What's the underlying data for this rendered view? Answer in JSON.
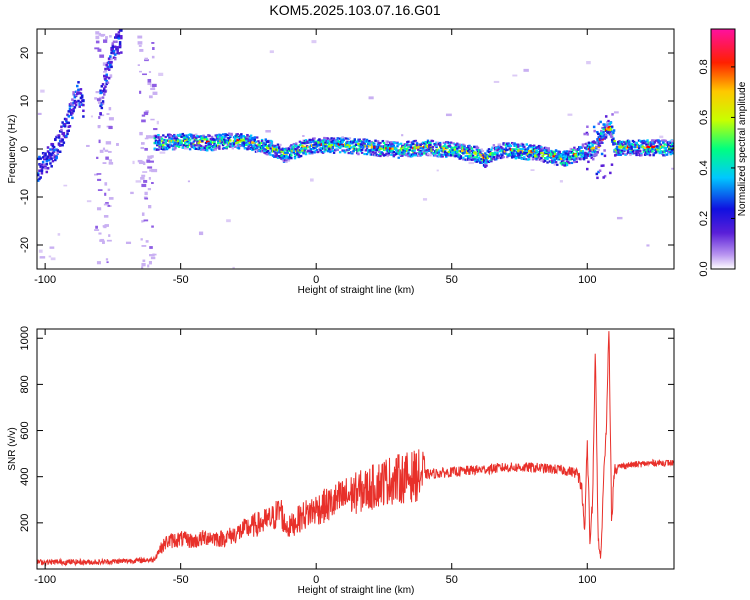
{
  "title": "KOM5.2025.103.07.16.G01",
  "chart_data": [
    {
      "type": "heatmap",
      "xlabel": "Height of straight line (km)",
      "ylabel": "Frequency (Hz)",
      "xlim": [
        -103,
        132
      ],
      "ylim": [
        -25,
        25
      ],
      "xticks": [
        -100,
        -50,
        0,
        50,
        100
      ],
      "yticks": [
        -20,
        -10,
        0,
        10,
        20
      ],
      "colorbar": {
        "label": "Normalized spectral amplitude",
        "range": [
          0,
          0.95
        ],
        "ticks": [
          "0.0",
          "0.2",
          "0.4",
          "0.6",
          "0.8"
        ],
        "tick_values": [
          0.0,
          0.2,
          0.4,
          0.6,
          0.8
        ],
        "colormap": [
          "#ffffff",
          "#7b3fe0",
          "#1010e0",
          "#00c8ff",
          "#00ff80",
          "#c8ff00",
          "#ffc800",
          "#ff0000",
          "#ff10a0"
        ]
      },
      "ridge": {
        "x": [
          -60,
          -50,
          -40,
          -30,
          -20,
          -15,
          -12,
          -5,
          0,
          10,
          20,
          30,
          40,
          50,
          55,
          60,
          62,
          65,
          70,
          80,
          85,
          90,
          95,
          100,
          103,
          105,
          108,
          110,
          120,
          132
        ],
        "y": [
          1.5,
          1.8,
          1.5,
          2.0,
          1.0,
          0.0,
          -1.0,
          0.5,
          1.0,
          1.0,
          0.5,
          0.0,
          0.5,
          0.0,
          -0.5,
          -1.0,
          -2.0,
          -0.5,
          0.0,
          -0.5,
          -1.0,
          -2.0,
          -1.0,
          0.0,
          0.5,
          3.0,
          5.0,
          0.5,
          0.5,
          0.5
        ]
      },
      "early_band": {
        "x": [
          -103,
          -98,
          -95,
          -92,
          -90,
          -88,
          -86
        ],
        "y": [
          -4,
          -1,
          2,
          6,
          10,
          12,
          8
        ]
      },
      "early_band_2": {
        "x": [
          -80,
          -78,
          -76,
          -74,
          -72
        ],
        "y": [
          10,
          15,
          19,
          22,
          23
        ]
      }
    },
    {
      "type": "line",
      "xlabel": "Height of straight line (km)",
      "ylabel": "SNR (v/v)",
      "xlim": [
        -103,
        132
      ],
      "ylim": [
        0,
        1040
      ],
      "xticks": [
        -100,
        -50,
        0,
        50,
        100
      ],
      "yticks": [
        200,
        400,
        600,
        800,
        1000
      ],
      "color": "#e8302a",
      "series": [
        {
          "x": [
            -103,
            -90,
            -80,
            -70,
            -60,
            -58,
            -55,
            -50,
            -45,
            -40,
            -35,
            -30,
            -25,
            -20,
            -16,
            -13,
            -12,
            -10,
            -5,
            0,
            5,
            10,
            15,
            20,
            25,
            30,
            35,
            40,
            50,
            60,
            70,
            80,
            90,
            95,
            97,
            98,
            99,
            100,
            101,
            102,
            103,
            104,
            105,
            106,
            107,
            108,
            109,
            110,
            115,
            120,
            125,
            132
          ],
          "y": [
            30,
            30,
            30,
            35,
            40,
            80,
            120,
            130,
            120,
            140,
            130,
            150,
            180,
            200,
            220,
            260,
            200,
            180,
            230,
            260,
            280,
            310,
            330,
            350,
            380,
            390,
            400,
            410,
            420,
            430,
            440,
            440,
            430,
            420,
            400,
            350,
            150,
            560,
            120,
            300,
            960,
            130,
            40,
            380,
            600,
            1040,
            200,
            440,
            450,
            455,
            460,
            460
          ]
        }
      ]
    }
  ]
}
